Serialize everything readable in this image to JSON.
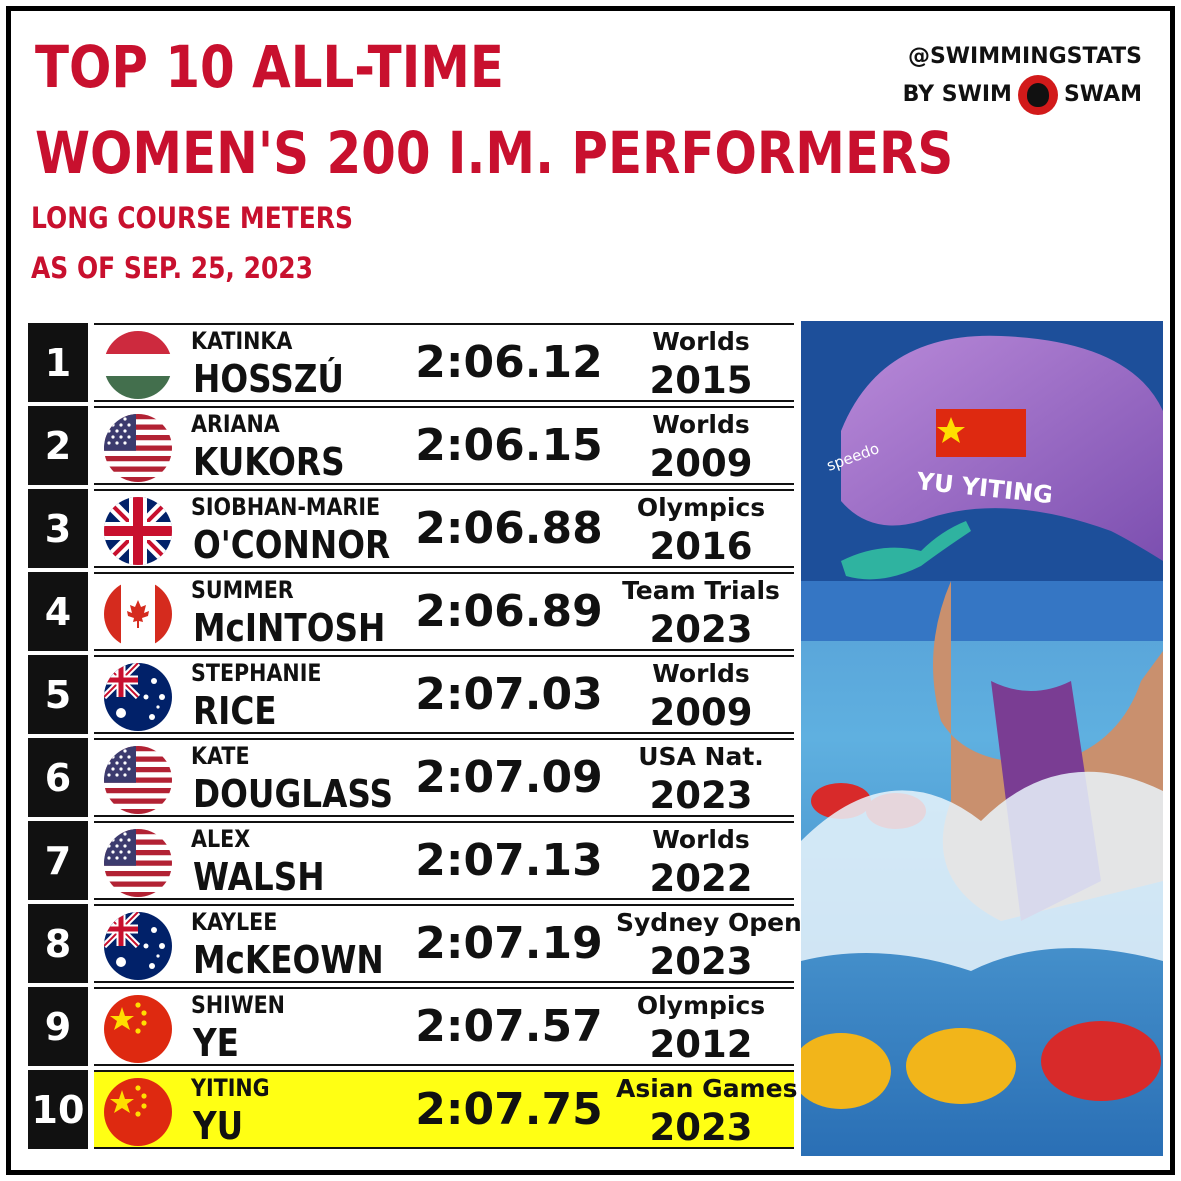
{
  "header": {
    "title_line1": "TOP 10 ALL-TIME",
    "title_line2": "WOMEN'S 200 I.M. PERFORMERS",
    "subtitle_line1": "LONG COURSE METERS",
    "subtitle_line2": "AS OF SEP. 25, 2023"
  },
  "brand": {
    "handle": "@SWIMMINGSTATS",
    "by": "BY SWIM",
    "by2": "SWAM"
  },
  "photo": {
    "cap_text": "YU YITING",
    "cap_brand": "speedo"
  },
  "colors": {
    "accent": "#c8102e",
    "highlight": "#ffff14",
    "rank_bg": "#111111"
  },
  "rows": [
    {
      "rank": "1",
      "flag": "hungary-flag",
      "first": "KATINKA",
      "last": "HOSSZÚ",
      "time": "2:06.12",
      "meet": "Worlds",
      "year": "2015",
      "highlight": false
    },
    {
      "rank": "2",
      "flag": "usa-flag",
      "first": "ARIANA",
      "last": "KUKORS",
      "time": "2:06.15",
      "meet": "Worlds",
      "year": "2009",
      "highlight": false
    },
    {
      "rank": "3",
      "flag": "uk-flag",
      "first": "SIOBHAN-MARIE",
      "last": "O'CONNOR",
      "time": "2:06.88",
      "meet": "Olympics",
      "year": "2016",
      "highlight": false
    },
    {
      "rank": "4",
      "flag": "canada-flag",
      "first": "SUMMER",
      "last": "McINTOSH",
      "time": "2:06.89",
      "meet": "Team Trials",
      "year": "2023",
      "highlight": false
    },
    {
      "rank": "5",
      "flag": "australia-flag",
      "first": "STEPHANIE",
      "last": "RICE",
      "time": "2:07.03",
      "meet": "Worlds",
      "year": "2009",
      "highlight": false
    },
    {
      "rank": "6",
      "flag": "usa-flag",
      "first": "KATE",
      "last": "DOUGLASS",
      "time": "2:07.09",
      "meet": "USA Nat.",
      "year": "2023",
      "highlight": false
    },
    {
      "rank": "7",
      "flag": "usa-flag",
      "first": "ALEX",
      "last": "WALSH",
      "time": "2:07.13",
      "meet": "Worlds",
      "year": "2022",
      "highlight": false
    },
    {
      "rank": "8",
      "flag": "australia-flag",
      "first": "KAYLEE",
      "last": "McKEOWN",
      "time": "2:07.19",
      "meet": "Sydney Open",
      "year": "2023",
      "highlight": false
    },
    {
      "rank": "9",
      "flag": "china-flag",
      "first": "SHIWEN",
      "last": "YE",
      "time": "2:07.57",
      "meet": "Olympics",
      "year": "2012",
      "highlight": false
    },
    {
      "rank": "10",
      "flag": "china-flag",
      "first": "YITING",
      "last": "YU",
      "time": "2:07.75",
      "meet": "Asian Games",
      "year": "2023",
      "highlight": true
    }
  ]
}
